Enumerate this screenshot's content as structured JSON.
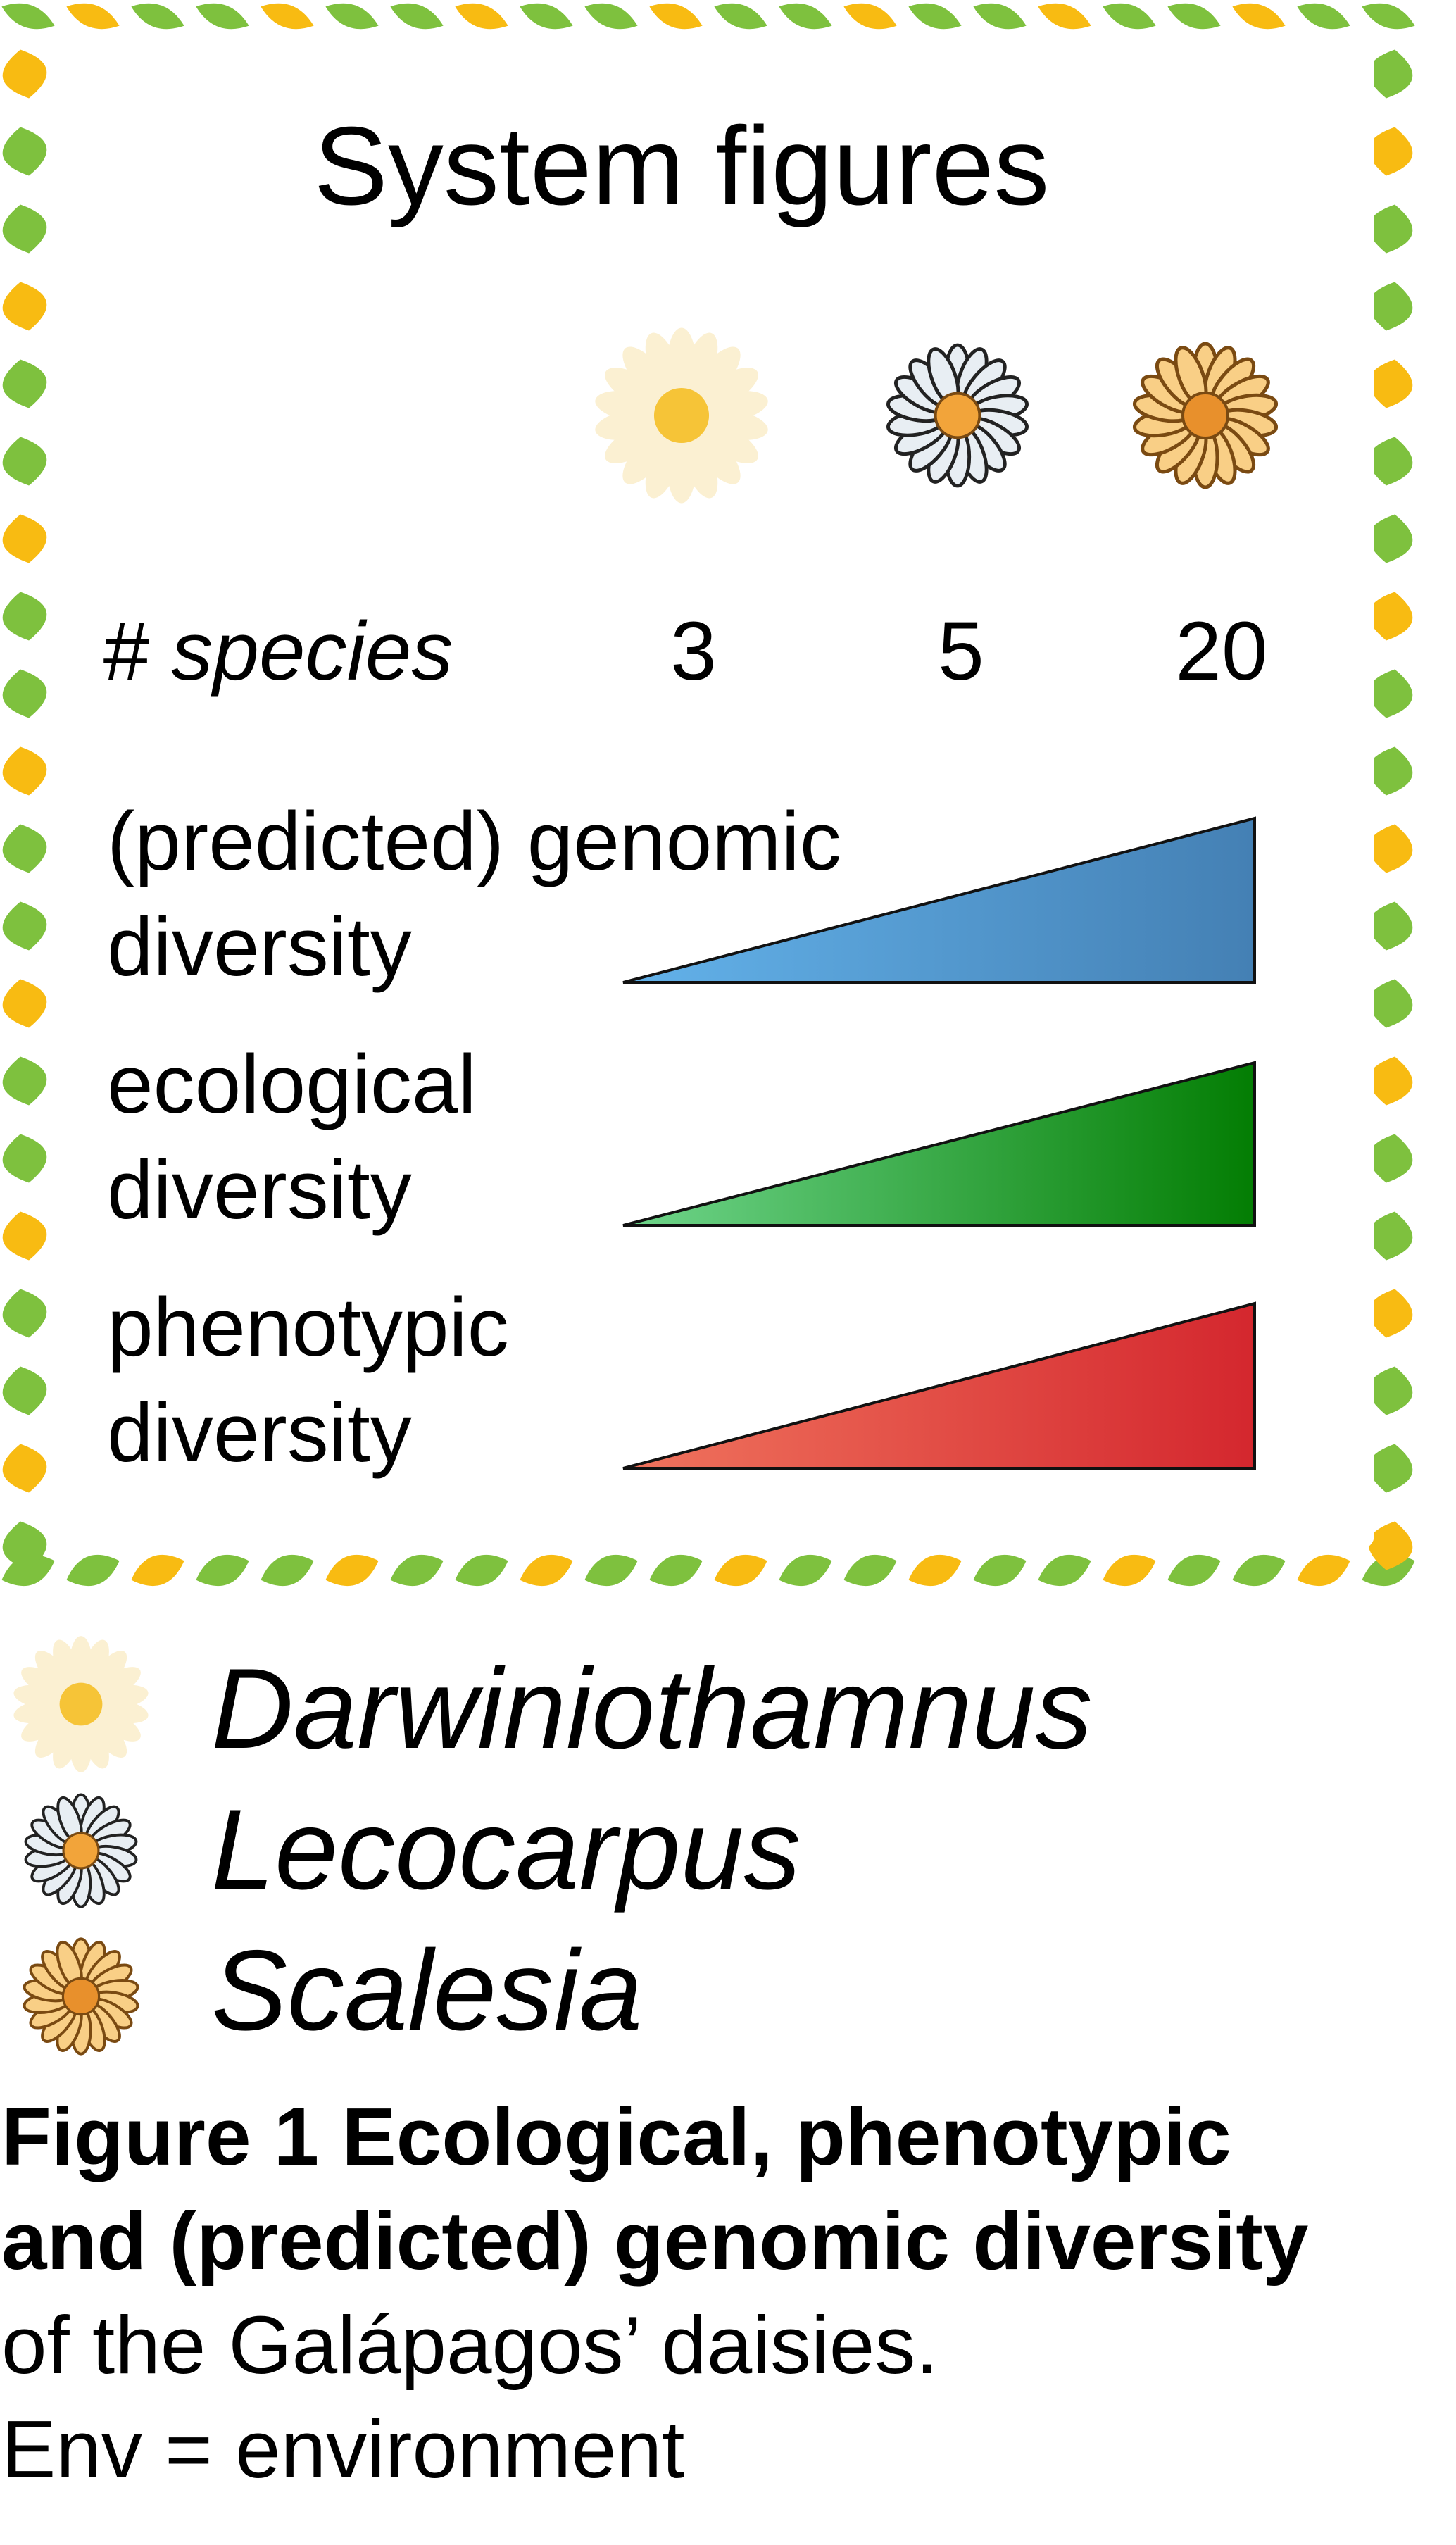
{
  "figure": {
    "title": "System figures",
    "species_label": "# species",
    "clades": [
      {
        "name": "Darwiniothamnus",
        "species_count": "3",
        "icon": "white-daisy-icon",
        "petal_color": "#fbf0d2",
        "center_color": "#f6c437"
      },
      {
        "name": "Lecocarpus",
        "species_count": "5",
        "icon": "grey-daisy-icon",
        "petal_color": "#e8eef3",
        "center_color": "#f2a43a"
      },
      {
        "name": "Scalesia",
        "species_count": "20",
        "icon": "orange-daisy-icon",
        "petal_color": "#f9cf86",
        "center_color": "#e8902c"
      }
    ],
    "rows": [
      {
        "label_line1": "(predicted) genomic",
        "label_line2": "diversity",
        "color_light": "#63b2ea",
        "color_dark": "#4480b4"
      },
      {
        "label_line1": "ecological",
        "label_line2": "diversity",
        "color_light": "#70d68c",
        "color_dark": "#037d03"
      },
      {
        "label_line1": "phenotypic",
        "label_line2": "diversity",
        "color_light": "#f0745e",
        "color_dark": "#d4272e"
      }
    ],
    "border_colors": {
      "green": "#7ec13e",
      "yellow": "#f8bb12"
    }
  },
  "legend": [
    {
      "name": "Darwiniothamnus",
      "icon": "white-daisy-icon"
    },
    {
      "name": "Lecocarpus",
      "icon": "grey-daisy-icon"
    },
    {
      "name": "Scalesia",
      "icon": "orange-daisy-icon"
    }
  ],
  "caption": {
    "bold_line1": "Figure 1 Ecological, phenotypic",
    "bold_line2": "and (predicted) genomic diversity",
    "line3": "of the Galápagos’ daisies.",
    "line4": "Env = environment"
  }
}
